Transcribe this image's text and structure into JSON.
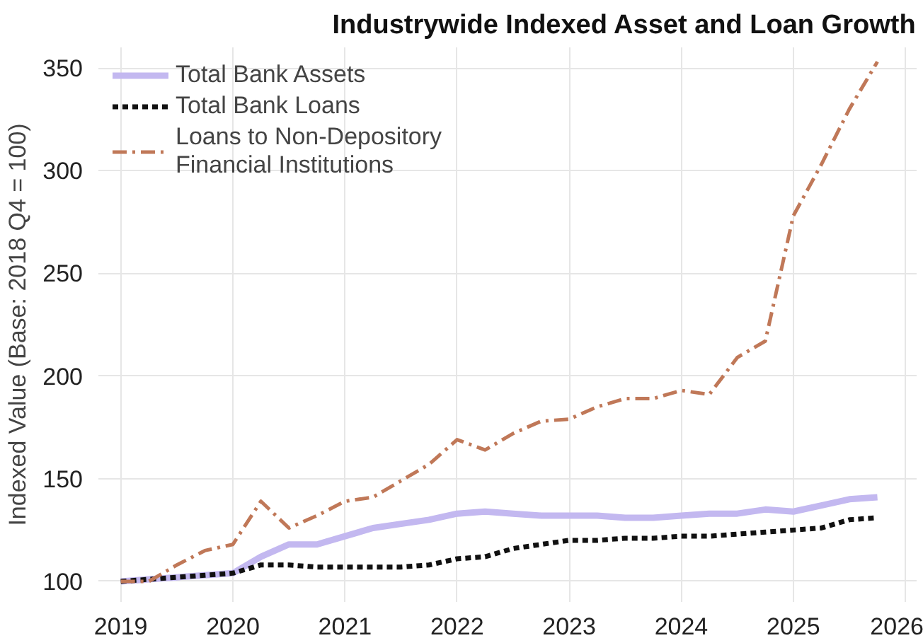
{
  "chart_data": {
    "type": "line",
    "title": "Industrywide Indexed Asset and Loan Growth",
    "ylabel": "Indexed Value (Base: 2018 Q4 = 100)",
    "x": [
      2019.0,
      2019.25,
      2019.5,
      2019.75,
      2020.0,
      2020.25,
      2020.5,
      2020.75,
      2021.0,
      2021.25,
      2021.5,
      2021.75,
      2022.0,
      2022.25,
      2022.5,
      2022.75,
      2023.0,
      2023.25,
      2023.5,
      2023.75,
      2024.0,
      2024.25,
      2024.5,
      2024.75,
      2025.0,
      2025.25,
      2025.5,
      2025.75
    ],
    "series": [
      {
        "name": "Total Bank Assets",
        "color": "#c3b8f0",
        "line_style": "solid",
        "values": [
          100,
          101,
          102,
          103,
          104,
          112,
          118,
          118,
          122,
          126,
          128,
          130,
          133,
          134,
          133,
          132,
          132,
          132,
          131,
          131,
          132,
          133,
          133,
          135,
          134,
          137,
          140,
          141
        ]
      },
      {
        "name": "Total Bank Loans",
        "color": "#111111",
        "line_style": "dashed",
        "values": [
          100,
          101,
          102,
          103,
          104,
          108,
          108,
          107,
          107,
          107,
          107,
          108,
          111,
          112,
          116,
          118,
          120,
          120,
          121,
          121,
          122,
          122,
          123,
          124,
          125,
          126,
          130,
          131
        ]
      },
      {
        "name": "Loans to Non-Depository\nFinancial Institutions",
        "color": "#c07858",
        "line_style": "dashdot",
        "values": [
          100,
          100,
          108,
          115,
          118,
          139,
          126,
          132,
          139,
          141,
          149,
          157,
          169,
          164,
          172,
          178,
          179,
          185,
          189,
          189,
          193,
          191,
          209,
          217,
          278,
          303,
          330,
          353
        ]
      }
    ],
    "xlim": [
      2018.8,
      2026.1
    ],
    "xticks": [
      2019,
      2020,
      2021,
      2022,
      2023,
      2024,
      2025,
      2026
    ],
    "ylim": [
      90,
      360
    ],
    "yticks": [
      100,
      150,
      200,
      250,
      300,
      350
    ],
    "grid": true,
    "legend": "top left"
  }
}
